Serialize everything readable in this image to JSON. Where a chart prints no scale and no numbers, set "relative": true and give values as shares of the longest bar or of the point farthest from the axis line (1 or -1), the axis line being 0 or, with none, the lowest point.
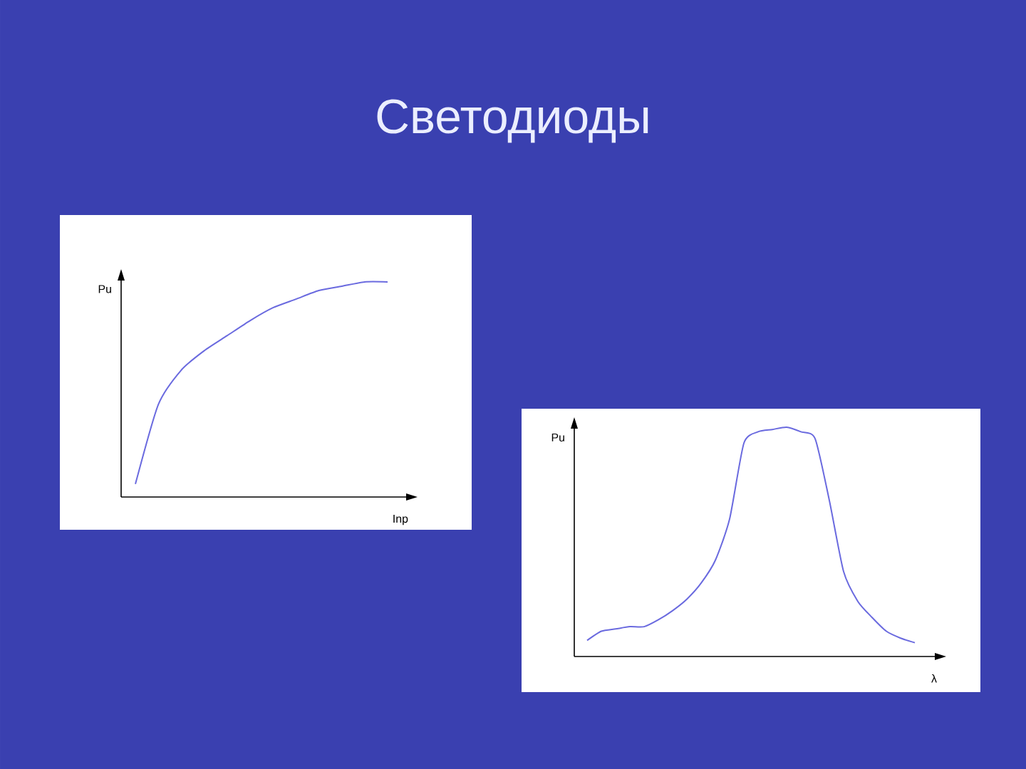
{
  "chart_data": [
    {
      "type": "line",
      "title": "Светодиоды",
      "xlabel": "Inp",
      "ylabel": "Pu",
      "relative": true,
      "color": "#6a6adf",
      "categories": [
        null,
        null,
        null,
        null,
        null,
        null,
        null,
        null,
        null,
        null,
        null,
        null
      ],
      "values": [
        0.06,
        0.43,
        0.59,
        0.68,
        0.75,
        0.82,
        0.88,
        0.92,
        0.96,
        0.98,
        1.0,
        1.0
      ]
    },
    {
      "type": "line",
      "xlabel": "λ",
      "ylabel": "Pu",
      "relative": true,
      "color": "#6a6adf",
      "categories": [
        null,
        null,
        null,
        null,
        null,
        null,
        null,
        null,
        null,
        null,
        null,
        null,
        null,
        null,
        null,
        null,
        null,
        null,
        null,
        null,
        null,
        null,
        null,
        null
      ],
      "values": [
        0.07,
        0.11,
        0.12,
        0.13,
        0.13,
        0.16,
        0.2,
        0.25,
        0.32,
        0.42,
        0.6,
        0.93,
        0.98,
        0.99,
        1.0,
        0.98,
        0.95,
        0.68,
        0.37,
        0.24,
        0.17,
        0.11,
        0.08,
        0.06
      ]
    }
  ]
}
